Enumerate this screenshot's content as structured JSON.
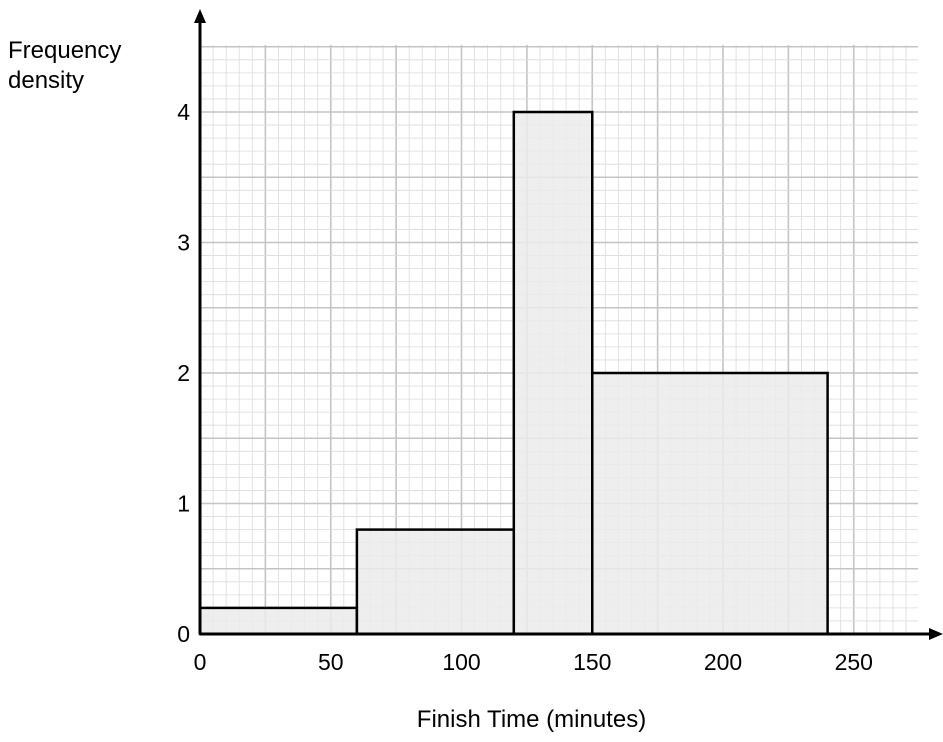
{
  "chart_data": {
    "type": "bar",
    "subtype": "histogram",
    "ylabel_lines": [
      "Frequency",
      "density"
    ],
    "xlabel": "Finish Time (minutes)",
    "xlim": [
      0,
      280
    ],
    "ylim": [
      0,
      4.5
    ],
    "x_ticks": [
      "0",
      "50",
      "100",
      "150",
      "200",
      "250"
    ],
    "x_tick_values": [
      0,
      50,
      100,
      150,
      200,
      250
    ],
    "y_ticks": [
      "0",
      "1",
      "2",
      "3",
      "4"
    ],
    "y_tick_values": [
      0,
      1,
      2,
      3,
      4
    ],
    "bins": [
      {
        "start": 0,
        "end": 60,
        "density": 0.2
      },
      {
        "start": 60,
        "end": 120,
        "density": 0.8
      },
      {
        "start": 120,
        "end": 150,
        "density": 4
      },
      {
        "start": 150,
        "end": 240,
        "density": 2
      }
    ],
    "grid": true,
    "colors": {
      "bar_fill": "#ebebeb",
      "bar_stroke": "#000000",
      "grid_minor": "#dcdcdc",
      "grid_major": "#c4c4c4"
    }
  }
}
